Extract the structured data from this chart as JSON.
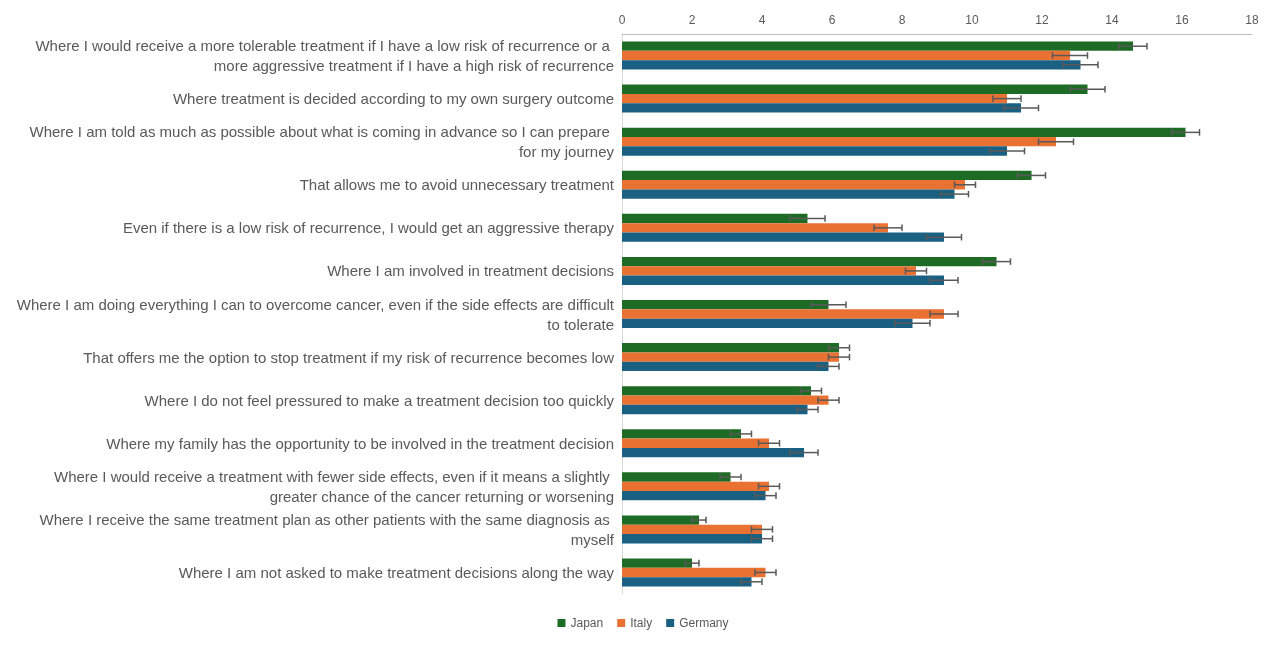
{
  "chart_data": {
    "type": "bar",
    "orientation": "horizontal",
    "categories": [
      "Where I would receive a more tolerable treatment if I have a low risk of recurrence or a more aggressive treatment if I have a high risk of recurrence",
      "Where treatment is decided according to my own surgery outcome",
      "Where I am told as much as possible about what is coming in advance so I can prepare for my journey",
      "That allows me to avoid unnecessary treatment",
      "Even if there is a low risk of recurrence, I would get an aggressive therapy",
      "Where I am involved in treatment decisions",
      "Where I am doing everything I can to overcome cancer, even if the side effects are difficult to tolerate",
      "That offers me the option to stop treatment if my risk of recurrence becomes low",
      "Where I do not feel pressured to make a treatment decision too quickly",
      "Where my family has the opportunity to be involved in the treatment decision",
      "Where I would receive a treatment with fewer side effects, even if it means a slightly greater chance of the cancer returning or worsening",
      "Where I receive the same treatment plan as other patients with the same diagnosis as myself",
      "Where I am not asked to make treatment decisions along the way"
    ],
    "series": [
      {
        "name": "Japan",
        "color": "#1e6b25",
        "values": [
          14.6,
          13.3,
          16.1,
          11.7,
          5.3,
          10.7,
          5.9,
          6.2,
          5.4,
          3.4,
          3.1,
          2.2,
          2.0
        ],
        "errors": [
          0.4,
          0.5,
          0.4,
          0.4,
          0.5,
          0.4,
          0.5,
          0.3,
          0.3,
          0.3,
          0.3,
          0.2,
          0.2
        ]
      },
      {
        "name": "Italy",
        "color": "#e97132",
        "values": [
          12.8,
          11.0,
          12.4,
          9.8,
          7.6,
          8.4,
          9.2,
          6.2,
          5.9,
          4.2,
          4.2,
          4.0,
          4.1
        ],
        "errors": [
          0.5,
          0.4,
          0.5,
          0.3,
          0.4,
          0.3,
          0.4,
          0.3,
          0.3,
          0.3,
          0.3,
          0.3,
          0.3
        ]
      },
      {
        "name": "Germany",
        "color": "#196083",
        "values": [
          13.1,
          11.4,
          11.0,
          9.5,
          9.2,
          9.2,
          8.3,
          5.9,
          5.3,
          5.2,
          4.1,
          4.0,
          3.7
        ],
        "errors": [
          0.5,
          0.5,
          0.5,
          0.4,
          0.5,
          0.4,
          0.5,
          0.3,
          0.3,
          0.4,
          0.3,
          0.3,
          0.3
        ]
      }
    ],
    "xlim": [
      0,
      18
    ],
    "xticks": [
      0,
      2,
      4,
      6,
      8,
      10,
      12,
      14,
      16,
      18
    ],
    "grid": false,
    "legend": "bottom"
  }
}
